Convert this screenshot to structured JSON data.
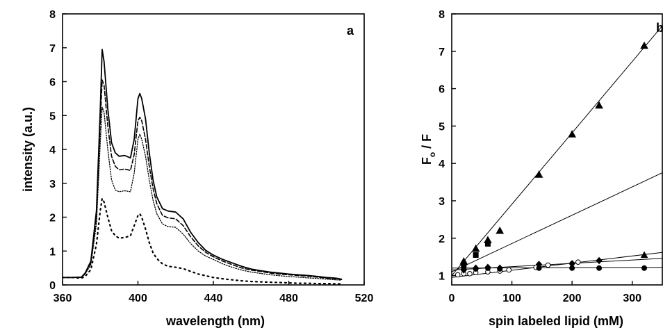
{
  "chart_data": [
    {
      "type": "line",
      "panel_label": "a",
      "xlabel": "wavelength (nm)",
      "ylabel": "intensity (a.u.)",
      "xlim": [
        360,
        520
      ],
      "ylim": [
        0,
        8
      ],
      "xticks": [
        "360",
        "400",
        "440",
        "480",
        "520"
      ],
      "yticks": [
        "0",
        "1",
        "2",
        "3",
        "4",
        "5",
        "6",
        "7",
        "8"
      ],
      "grid": false,
      "series": [
        {
          "style": "solid",
          "x": [
            360,
            365,
            370,
            372,
            375,
            378,
            380,
            381,
            382,
            384,
            386,
            388,
            390,
            393,
            396,
            398,
            400,
            401,
            402,
            404,
            406,
            408,
            410,
            413,
            416,
            420,
            424,
            428,
            432,
            436,
            440,
            445,
            450,
            455,
            460,
            465,
            470,
            475,
            480,
            485,
            490,
            495,
            500,
            505,
            508
          ],
          "y": [
            0.22,
            0.22,
            0.23,
            0.35,
            0.7,
            2.2,
            5.2,
            6.95,
            6.6,
            5.2,
            4.2,
            3.9,
            3.8,
            3.82,
            3.75,
            4.3,
            5.5,
            5.65,
            5.5,
            4.9,
            3.9,
            3.1,
            2.6,
            2.25,
            2.18,
            2.15,
            1.95,
            1.55,
            1.25,
            1.02,
            0.88,
            0.75,
            0.65,
            0.55,
            0.47,
            0.42,
            0.38,
            0.35,
            0.32,
            0.3,
            0.28,
            0.25,
            0.22,
            0.2,
            0.17
          ]
        },
        {
          "style": "dashed",
          "x": [
            360,
            365,
            370,
            372,
            375,
            378,
            380,
            381,
            382,
            384,
            386,
            388,
            390,
            393,
            396,
            398,
            400,
            401,
            402,
            404,
            406,
            408,
            410,
            413,
            416,
            420,
            424,
            428,
            432,
            436,
            440,
            445,
            450,
            455,
            460,
            465,
            470,
            475,
            480,
            485,
            490,
            495,
            500,
            505,
            508
          ],
          "y": [
            0.22,
            0.22,
            0.23,
            0.33,
            0.65,
            2.0,
            4.8,
            6.05,
            5.9,
            4.7,
            3.8,
            3.5,
            3.4,
            3.42,
            3.38,
            3.85,
            4.85,
            4.95,
            4.85,
            4.3,
            3.5,
            2.85,
            2.4,
            2.05,
            1.98,
            1.95,
            1.75,
            1.42,
            1.15,
            0.96,
            0.83,
            0.7,
            0.6,
            0.5,
            0.44,
            0.4,
            0.35,
            0.32,
            0.3,
            0.28,
            0.26,
            0.23,
            0.2,
            0.18,
            0.16
          ]
        },
        {
          "style": "dotted",
          "x": [
            360,
            365,
            370,
            372,
            375,
            378,
            380,
            381,
            382,
            384,
            386,
            388,
            390,
            393,
            396,
            398,
            400,
            401,
            402,
            404,
            406,
            408,
            410,
            413,
            416,
            420,
            424,
            428,
            432,
            436,
            440,
            445,
            450,
            455,
            460,
            465,
            470,
            475,
            480,
            485,
            490,
            495,
            500,
            505,
            508
          ],
          "y": [
            0.22,
            0.22,
            0.22,
            0.32,
            0.6,
            1.8,
            4.2,
            5.25,
            5.1,
            4.0,
            3.1,
            2.8,
            2.75,
            2.78,
            2.75,
            3.3,
            4.3,
            4.45,
            4.3,
            3.8,
            3.1,
            2.5,
            2.1,
            1.8,
            1.72,
            1.7,
            1.5,
            1.22,
            1.0,
            0.85,
            0.75,
            0.62,
            0.52,
            0.44,
            0.38,
            0.34,
            0.3,
            0.27,
            0.25,
            0.23,
            0.21,
            0.19,
            0.17,
            0.15,
            0.14
          ]
        },
        {
          "style": "sparse-dotted",
          "x": [
            360,
            365,
            370,
            372,
            375,
            378,
            380,
            381,
            382,
            384,
            386,
            388,
            390,
            393,
            396,
            398,
            400,
            401,
            402,
            404,
            406,
            408,
            410,
            413,
            416,
            420,
            424,
            428,
            432,
            436,
            440,
            445,
            450,
            455,
            460,
            465,
            470,
            475,
            480,
            485,
            490,
            495,
            500,
            505,
            508
          ],
          "y": [
            0.22,
            0.22,
            0.2,
            0.25,
            0.45,
            1.2,
            2.2,
            2.55,
            2.45,
            2.0,
            1.6,
            1.45,
            1.38,
            1.4,
            1.45,
            1.75,
            2.05,
            2.1,
            2.0,
            1.65,
            1.25,
            0.95,
            0.78,
            0.62,
            0.55,
            0.52,
            0.48,
            0.4,
            0.32,
            0.27,
            0.22,
            0.18,
            0.15,
            0.12,
            0.1,
            0.09,
            0.08,
            0.07,
            0.06,
            0.05,
            0.05,
            0.04,
            0.04,
            0.03,
            0.03
          ]
        }
      ]
    },
    {
      "type": "scatter",
      "panel_label": "b",
      "xlabel": "spin labeled lipid (mM)",
      "ylabel": "F",
      "ylabel_subscript": "o",
      "ylabel_rest": " / F",
      "xlim": [
        0,
        350
      ],
      "ylim": [
        0.75,
        8
      ],
      "xticks": [
        0,
        100,
        200,
        300
      ],
      "yticks": [
        1,
        2,
        3,
        4,
        5,
        6,
        7,
        8
      ],
      "grid": false,
      "series": [
        {
          "marker": "filled-triangle",
          "x": [
            20,
            40,
            60,
            80,
            145,
            200,
            245,
            320
          ],
          "y": [
            1.38,
            1.72,
            1.95,
            2.2,
            3.7,
            4.78,
            5.55,
            7.15
          ],
          "fit": {
            "x": [
              0,
              350
            ],
            "y": [
              1.0,
              7.68
            ]
          }
        },
        {
          "marker": "filled-square",
          "x": [
            20,
            40,
            60
          ],
          "y": [
            1.3,
            1.55,
            1.85
          ],
          "fit": {
            "x": [
              0,
              350
            ],
            "y": [
              1.1,
              3.75
            ]
          }
        },
        {
          "marker": "open-circle",
          "x": [
            10,
            20,
            30,
            40,
            60,
            80,
            95,
            140,
            160,
            200,
            210
          ],
          "y": [
            1.02,
            1.05,
            1.05,
            1.08,
            1.1,
            1.12,
            1.15,
            1.22,
            1.28,
            1.32,
            1.36
          ],
          "fit": {
            "x": [
              0,
              350
            ],
            "y": [
              0.95,
              1.62
            ]
          }
        },
        {
          "marker": "filled-diamond",
          "x": [
            20,
            40,
            60,
            80,
            145,
            200,
            245
          ],
          "y": [
            1.15,
            1.2,
            1.22,
            1.2,
            1.3,
            1.32,
            1.4
          ],
          "fit": {
            "x": [
              0,
              350
            ],
            "y": [
              1.15,
              1.46
            ]
          }
        },
        {
          "marker": "filled-triangle-small",
          "x": [
            320
          ],
          "y": [
            1.55
          ]
        },
        {
          "marker": "filled-circle",
          "x": [
            20,
            40,
            60,
            80,
            145,
            200,
            245,
            320
          ],
          "y": [
            1.2,
            1.18,
            1.2,
            1.18,
            1.2,
            1.2,
            1.2,
            1.2
          ],
          "fit": {
            "x": [
              0,
              350
            ],
            "y": [
              1.2,
              1.22
            ]
          }
        }
      ]
    }
  ]
}
